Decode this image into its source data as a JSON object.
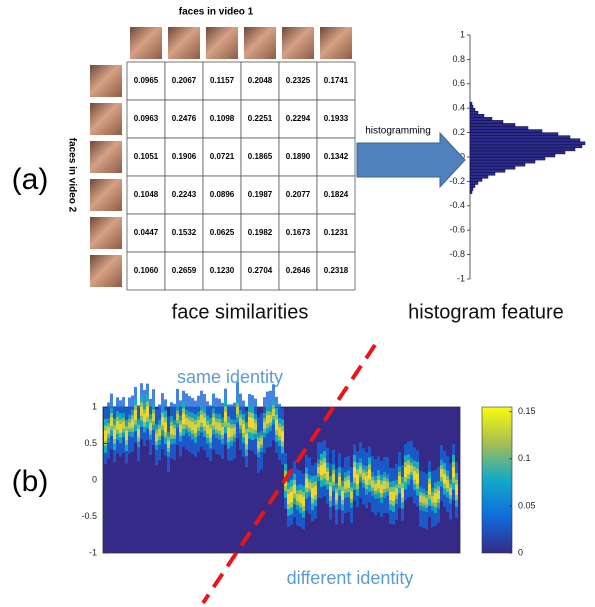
{
  "panel_a": {
    "label": "(a)",
    "table": {
      "col_header": "faces in video 1",
      "row_header": "faces in video 2",
      "rows": [
        [
          "0.0965",
          "0.2067",
          "0.1157",
          "0.2048",
          "0.2325",
          "0.1741"
        ],
        [
          "0.0963",
          "0.2476",
          "0.1098",
          "0.2251",
          "0.2294",
          "0.1933"
        ],
        [
          "0.1051",
          "0.1906",
          "0.0721",
          "0.1865",
          "0.1890",
          "0.1342"
        ],
        [
          "0.1048",
          "0.2243",
          "0.0896",
          "0.1987",
          "0.2077",
          "0.1824"
        ],
        [
          "0.0447",
          "0.1532",
          "0.0625",
          "0.1982",
          "0.1673",
          "0.1231"
        ],
        [
          "0.1060",
          "0.2659",
          "0.1230",
          "0.2704",
          "0.2646",
          "0.2318"
        ]
      ]
    },
    "caption": "face similarities",
    "arrow_label": "histogramming",
    "histogram": {
      "ylim": [
        -1,
        1
      ],
      "yticks": [
        1,
        0.8,
        0.6,
        0.4,
        0.2,
        0,
        -0.2,
        -0.4,
        -0.6,
        -0.8,
        -1
      ],
      "xlim": [
        0,
        120
      ],
      "bins": [
        -0.3,
        -0.275,
        -0.25,
        -0.225,
        -0.2,
        -0.175,
        -0.15,
        -0.125,
        -0.1,
        -0.075,
        -0.05,
        -0.025,
        0,
        0.025,
        0.05,
        0.075,
        0.1,
        0.125,
        0.15,
        0.175,
        0.2,
        0.225,
        0.25,
        0.275,
        0.3,
        0.325,
        0.35,
        0.375,
        0.4,
        0.425,
        0.45
      ],
      "counts": [
        2,
        3,
        5,
        8,
        12,
        18,
        25,
        35,
        45,
        55,
        65,
        75,
        85,
        95,
        105,
        112,
        115,
        110,
        100,
        88,
        72,
        58,
        45,
        33,
        22,
        14,
        8,
        5,
        3,
        2
      ]
    },
    "histogram_caption": "histogram feature"
  },
  "panel_b": {
    "label": "(b)",
    "ylim": [
      -1,
      1
    ],
    "yticks": [
      1,
      0.5,
      0,
      -0.5,
      -1
    ],
    "colorbar_lim": [
      0,
      0.155
    ],
    "colorbar_ticks": [
      0.15,
      0.1,
      0.05,
      0
    ],
    "same_label": "same identity",
    "different_label": "different identity"
  }
}
